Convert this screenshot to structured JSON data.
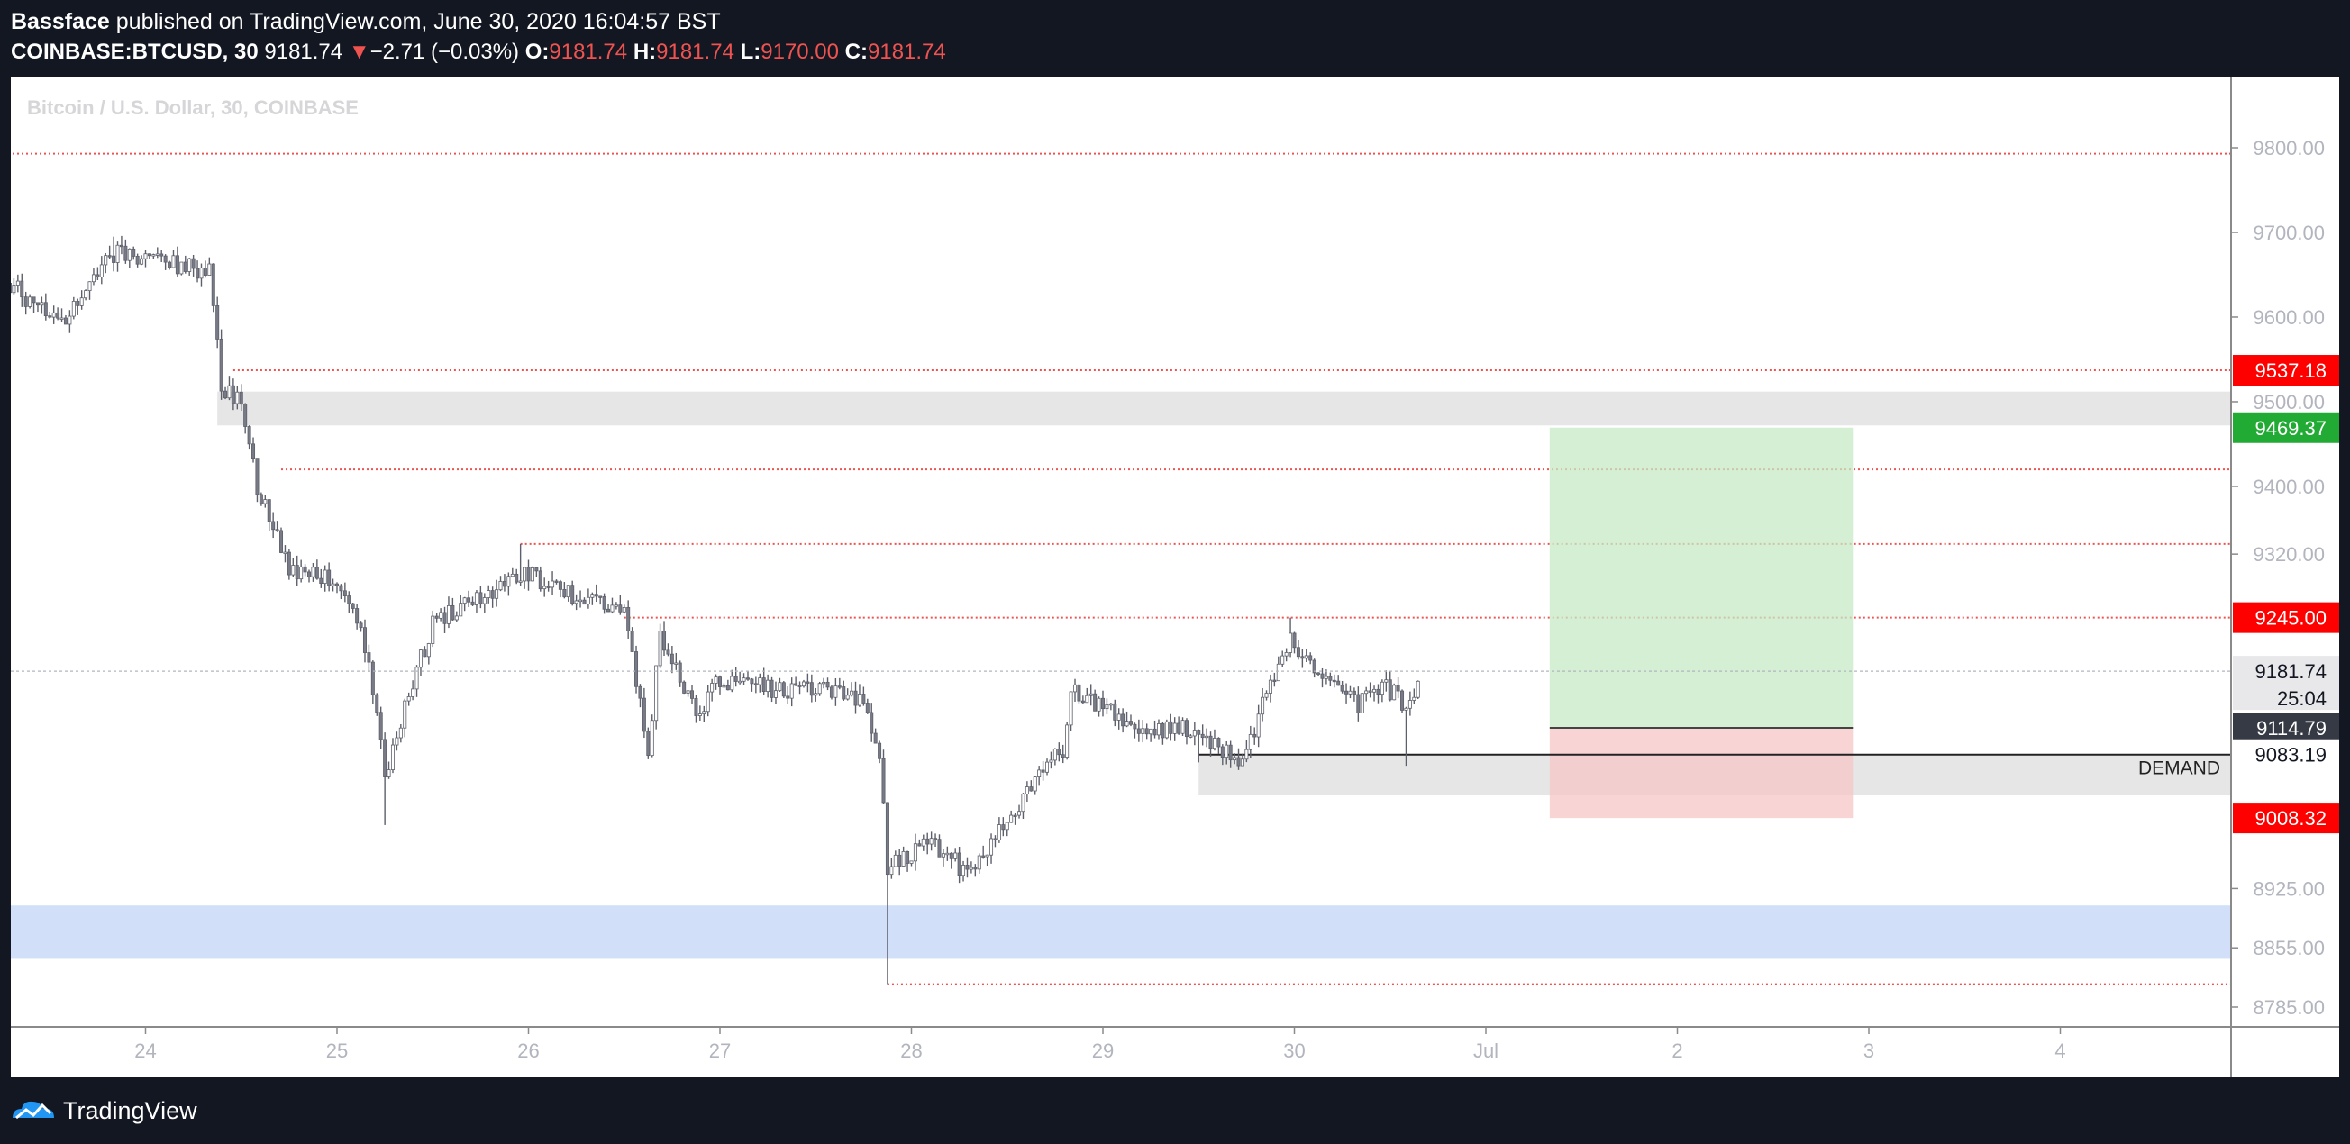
{
  "header": {
    "publisher": "Bassface",
    "published_text": "published on TradingView.com, June 30, 2020 16:04:57 BST",
    "symbol": "COINBASE:BTCUSD, 30",
    "last": "9181.74",
    "change_arrow": "▼",
    "change": "−2.71 (−0.03%)",
    "o_label": "O:",
    "o_value": "9181.74",
    "h_label": "H:",
    "h_value": "9181.74",
    "l_label": "L:",
    "l_value": "9170.00",
    "c_label": "C:",
    "c_value": "9181.74"
  },
  "footer": {
    "brand": "TradingView",
    "logo_icon": "tradingview-logo-icon"
  },
  "colors": {
    "background": "#131722",
    "pane": "#ffffff",
    "up": "#ffffff",
    "down": "#787b86",
    "level": "#ef5350",
    "zone_grey": "#dcdcdc",
    "zone_blue": "#b3c9f5",
    "target": "#c5eac5",
    "stop": "#f5c6c6",
    "badge_red": "#ff0000",
    "badge_green": "#22ab34",
    "badge_dark": "#363a45"
  },
  "chart_data": {
    "type": "candlestick",
    "title": "Bitcoin / U.S. Dollar, 30, COINBASE",
    "price_axis": {
      "ticks": [
        9800,
        9700,
        9600,
        9500,
        9400,
        9320,
        9245,
        9181.74,
        9114.79,
        9083.19,
        8925,
        8855,
        8785
      ],
      "ylim": [
        8770,
        9855
      ]
    },
    "time_axis": {
      "labels": [
        "24",
        "25",
        "26",
        "27",
        "28",
        "29",
        "30",
        "Jul",
        "2",
        "3",
        "4"
      ]
    },
    "ohlc_anchors": [
      {
        "t": "2020-06-23 07:00",
        "price": 9640
      },
      {
        "t": "2020-06-23 13:00",
        "price": 9590
      },
      {
        "t": "2020-06-23 20:00",
        "price": 9675
      },
      {
        "t": "2020-06-24 08:00",
        "price": 9655
      },
      {
        "t": "2020-06-24 09:30",
        "price": 9520
      },
      {
        "t": "2020-06-24 12:00",
        "price": 9495
      },
      {
        "t": "2020-06-24 14:00",
        "price": 9400
      },
      {
        "t": "2020-06-24 18:00",
        "price": 9300
      },
      {
        "t": "2020-06-25 00:00",
        "price": 9290
      },
      {
        "t": "2020-06-25 04:00",
        "price": 9200
      },
      {
        "t": "2020-06-25 06:00",
        "price": 9060
      },
      {
        "t": "2020-06-25 12:00",
        "price": 9240
      },
      {
        "t": "2020-06-25 18:00",
        "price": 9270
      },
      {
        "t": "2020-06-25 23:00",
        "price": 9300
      },
      {
        "t": "2020-06-26 06:00",
        "price": 9270
      },
      {
        "t": "2020-06-26 12:00",
        "price": 9250
      },
      {
        "t": "2020-06-26 15:00",
        "price": 9090
      },
      {
        "t": "2020-06-26 16:30",
        "price": 9220
      },
      {
        "t": "2020-06-26 21:00",
        "price": 9130
      },
      {
        "t": "2020-06-27 00:00",
        "price": 9170
      },
      {
        "t": "2020-06-27 08:00",
        "price": 9160
      },
      {
        "t": "2020-06-27 15:00",
        "price": 9160
      },
      {
        "t": "2020-06-27 18:00",
        "price": 9140
      },
      {
        "t": "2020-06-27 20:00",
        "price": 9090
      },
      {
        "t": "2020-06-27 21:00",
        "price": 8950
      },
      {
        "t": "2020-06-28 02:00",
        "price": 8980
      },
      {
        "t": "2020-06-28 07:00",
        "price": 8945
      },
      {
        "t": "2020-06-28 12:00",
        "price": 9000
      },
      {
        "t": "2020-06-28 16:00",
        "price": 9060
      },
      {
        "t": "2020-06-28 19:00",
        "price": 9090
      },
      {
        "t": "2020-06-28 20:00",
        "price": 9160
      },
      {
        "t": "2020-06-29 00:00",
        "price": 9140
      },
      {
        "t": "2020-06-29 06:00",
        "price": 9110
      },
      {
        "t": "2020-06-29 12:00",
        "price": 9115
      },
      {
        "t": "2020-06-29 15:00",
        "price": 9090
      },
      {
        "t": "2020-06-29 17:00",
        "price": 9080
      },
      {
        "t": "2020-06-29 19:00",
        "price": 9110
      },
      {
        "t": "2020-06-29 21:00",
        "price": 9170
      },
      {
        "t": "2020-06-29 23:30",
        "price": 9220
      },
      {
        "t": "2020-06-30 02:00",
        "price": 9190
      },
      {
        "t": "2020-06-30 06:00",
        "price": 9170
      },
      {
        "t": "2020-06-30 08:00",
        "price": 9140
      },
      {
        "t": "2020-06-30 11:00",
        "price": 9165
      },
      {
        "t": "2020-06-30 13:00",
        "price": 9150
      },
      {
        "t": "2020-06-30 14:00",
        "price": 9140
      },
      {
        "t": "2020-06-30 16:00",
        "price": 9181.74
      }
    ],
    "spikes": [
      {
        "t": "2020-06-25 06:00",
        "low": 9000
      },
      {
        "t": "2020-06-27 21:00",
        "low": 8812
      },
      {
        "t": "2020-06-29 12:00",
        "low": 9074
      },
      {
        "t": "2020-06-30 14:00",
        "low": 9070
      },
      {
        "t": "2020-06-23 20:00",
        "high": 9695
      },
      {
        "t": "2020-06-24 14:00",
        "high": 9420
      },
      {
        "t": "2020-06-25 23:00",
        "high": 9332
      },
      {
        "t": "2020-06-29 23:30",
        "high": 9245
      }
    ],
    "levels": [
      {
        "price": 9793,
        "from": "2020-06-23 00:00"
      },
      {
        "price": 9537.18,
        "from": "2020-06-24 11:00",
        "label": "9537.18"
      },
      {
        "price": 9420,
        "from": "2020-06-24 17:00"
      },
      {
        "price": 9332,
        "from": "2020-06-25 23:00"
      },
      {
        "price": 9245.0,
        "from": "2020-06-26 12:00",
        "label": "9245.00"
      },
      {
        "price": 8812,
        "from": "2020-06-27 21:00"
      }
    ],
    "zones": [
      {
        "name": "supply",
        "top": 9512,
        "bottom": 9472,
        "from": "2020-06-24 09:00"
      },
      {
        "name": "demand",
        "top": 9083.19,
        "bottom": 9035,
        "from": "2020-06-29 12:00",
        "label": "DEMAND"
      },
      {
        "name": "support",
        "top": 8905,
        "bottom": 8842,
        "from": "2020-06-23 00:00"
      }
    ],
    "last_price": 9181.74,
    "countdown": "25:04",
    "position": {
      "type": "long",
      "entry": 9114.79,
      "target": 9469.37,
      "stop": 9008.32,
      "from": "2020-07-01 08:00",
      "to": "2020-07-02 22:00"
    }
  }
}
